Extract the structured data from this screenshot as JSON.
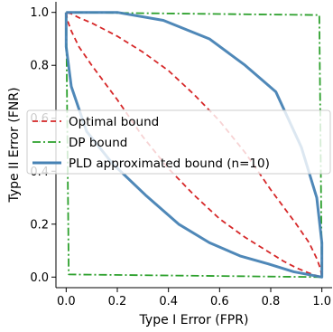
{
  "chart_data": {
    "type": "line",
    "xlabel": "Type I Error (FPR)",
    "ylabel": "Type II Error (FNR)",
    "xlim": [
      -0.04,
      1.04
    ],
    "ylim": [
      -0.04,
      1.04
    ],
    "xticks": [
      "0.0",
      "0.2",
      "0.4",
      "0.6",
      "0.8",
      "1.0"
    ],
    "yticks": [
      "0.0",
      "0.2",
      "0.4",
      "0.6",
      "0.8",
      "1.0"
    ],
    "legend_position": "center-left",
    "grid": false,
    "series": [
      {
        "name": "Optimal bound",
        "color": "#d62728",
        "style": "dashed",
        "x": [
          0.0,
          0.005,
          0.02,
          0.05,
          0.1,
          0.2,
          0.3,
          0.4,
          0.5,
          0.6,
          0.7,
          0.8,
          0.85,
          0.9,
          0.95,
          0.98,
          1.0,
          1.0,
          0.995,
          0.98,
          0.95,
          0.9,
          0.8,
          0.7,
          0.6,
          0.5,
          0.4,
          0.3,
          0.2,
          0.1,
          0.05,
          0.02,
          0.0,
          0.0
        ],
        "y": [
          1.0,
          0.97,
          0.93,
          0.87,
          0.8,
          0.67,
          0.53,
          0.41,
          0.31,
          0.22,
          0.15,
          0.09,
          0.06,
          0.035,
          0.015,
          0.005,
          0.0,
          0.0,
          0.03,
          0.07,
          0.13,
          0.2,
          0.33,
          0.47,
          0.59,
          0.69,
          0.78,
          0.85,
          0.91,
          0.96,
          0.98,
          0.995,
          1.0,
          1.0
        ]
      },
      {
        "name": "DP bound",
        "color": "#2ca02c",
        "style": "dashdot",
        "x": [
          0.0,
          0.01,
          1.0,
          1.0,
          0.99,
          0.0,
          0.0
        ],
        "y": [
          1.0,
          0.01,
          0.0,
          0.0,
          0.99,
          1.0,
          1.0
        ]
      },
      {
        "name": "PLD approximated bound (n=10)",
        "color": "#4682b4",
        "style": "solid",
        "x": [
          0.0,
          0.0,
          0.02,
          0.08,
          0.18,
          0.31,
          0.44,
          0.56,
          0.68,
          0.79,
          0.89,
          1.0,
          1.0,
          0.98,
          0.92,
          0.82,
          0.7,
          0.56,
          0.38,
          0.2,
          0.11,
          0.03,
          0.0
        ],
        "y": [
          1.0,
          0.87,
          0.72,
          0.55,
          0.43,
          0.31,
          0.2,
          0.13,
          0.08,
          0.05,
          0.02,
          0.0,
          0.13,
          0.3,
          0.49,
          0.7,
          0.8,
          0.9,
          0.97,
          1.0,
          1.0,
          1.0,
          1.0
        ]
      }
    ]
  }
}
